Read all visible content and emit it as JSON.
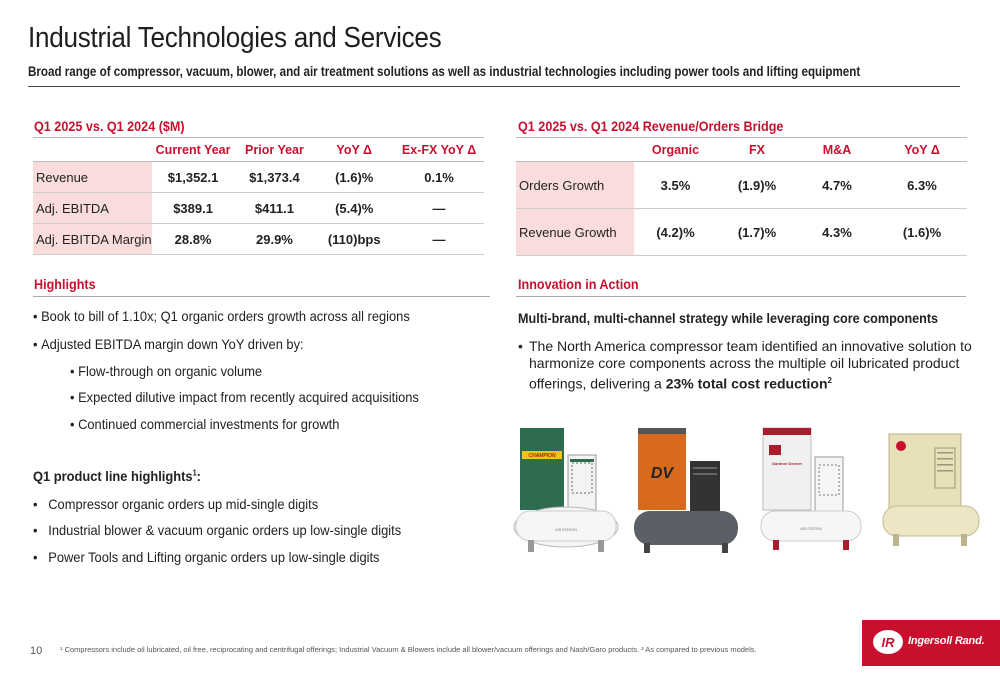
{
  "header": {
    "title": "Industrial Technologies and Services",
    "subtitle": "Broad range of compressor, vacuum, blower, and air treatment solutions as well as industrial technologies including power tools and lifting equipment"
  },
  "financials": {
    "heading": "Q1 2025 vs. Q1 2024 ($M)",
    "columns": [
      "",
      "Current Year",
      "Prior Year",
      "YoY Δ",
      "Ex-FX YoY Δ"
    ],
    "rows": [
      {
        "label": "Revenue",
        "current": "$1,352.1",
        "prior": "$1,373.4",
        "yoy": "(1.6)%",
        "exfx": "0.1%"
      },
      {
        "label": "Adj. EBITDA",
        "current": "$389.1",
        "prior": "$411.1",
        "yoy": "(5.4)%",
        "exfx": "—"
      },
      {
        "label": "Adj. EBITDA Margin",
        "current": "28.8%",
        "prior": "29.9%",
        "yoy": "(110)bps",
        "exfx": "—"
      }
    ]
  },
  "bridge": {
    "heading": "Q1 2025 vs. Q1 2024 Revenue/Orders Bridge",
    "columns": [
      "",
      "Organic",
      "FX",
      "M&A",
      "YoY Δ"
    ],
    "rows": [
      {
        "label": "Orders Growth",
        "organic": "3.5%",
        "fx": "(1.9)%",
        "ma": "4.7%",
        "yoy": "6.3%"
      },
      {
        "label": "Revenue Growth",
        "organic": "(4.2)%",
        "fx": "(1.7)%",
        "ma": "4.3%",
        "yoy": "(1.6)%"
      }
    ]
  },
  "highlights": {
    "heading": "Highlights",
    "b1": "Book to bill of 1.10x; Q1 organic orders growth across all regions",
    "b2": "Adjusted EBITDA margin down YoY driven by:",
    "s1": "Flow-through on organic volume",
    "s2": "Expected dilutive impact from recently acquired acquisitions",
    "s3": "Continued commercial investments for growth",
    "product_heading": "Q1 product line highlights",
    "product_heading_sup": "1",
    "product_heading_colon": ":",
    "p1": "Compressor organic orders up mid-single digits",
    "p2": "Industrial blower & vacuum organic orders up low-single digits",
    "p3": "Power Tools and Lifting organic orders up low-single digits"
  },
  "innovation": {
    "heading": "Innovation in Action",
    "subheading": "Multi-brand, multi-channel strategy while leveraging core components",
    "text_before": "The North America compressor team identified an innovative solution to harmonize core components across the multiple oil lubricated product offerings, delivering a ",
    "text_bold": "23% total cost reduction",
    "text_sup": "2",
    "tank_label": "AIR STATION",
    "product_brand_1": "CHAMPION",
    "product_brand_2": "DV",
    "product_brand_3": "Gardner Denver"
  },
  "footer": {
    "page": "10",
    "footnote": "¹ Compressors include oil lubricated, oil free, reciprocating and centrifugal offerings; Industrial Vacuum & Blowers include all blower/vacuum offerings and Nash/Garo products. ² As compared to previous models.",
    "logo": "Ingersoll Rand.",
    "logo_mark": "IR"
  },
  "colors": {
    "accent": "#c8102e",
    "row_label_bg": "#fbdcdc",
    "product_green": "#2e6b4f",
    "product_orange": "#d86a1e",
    "product_red": "#a81e2c",
    "product_beige": "#e8e0b8"
  }
}
